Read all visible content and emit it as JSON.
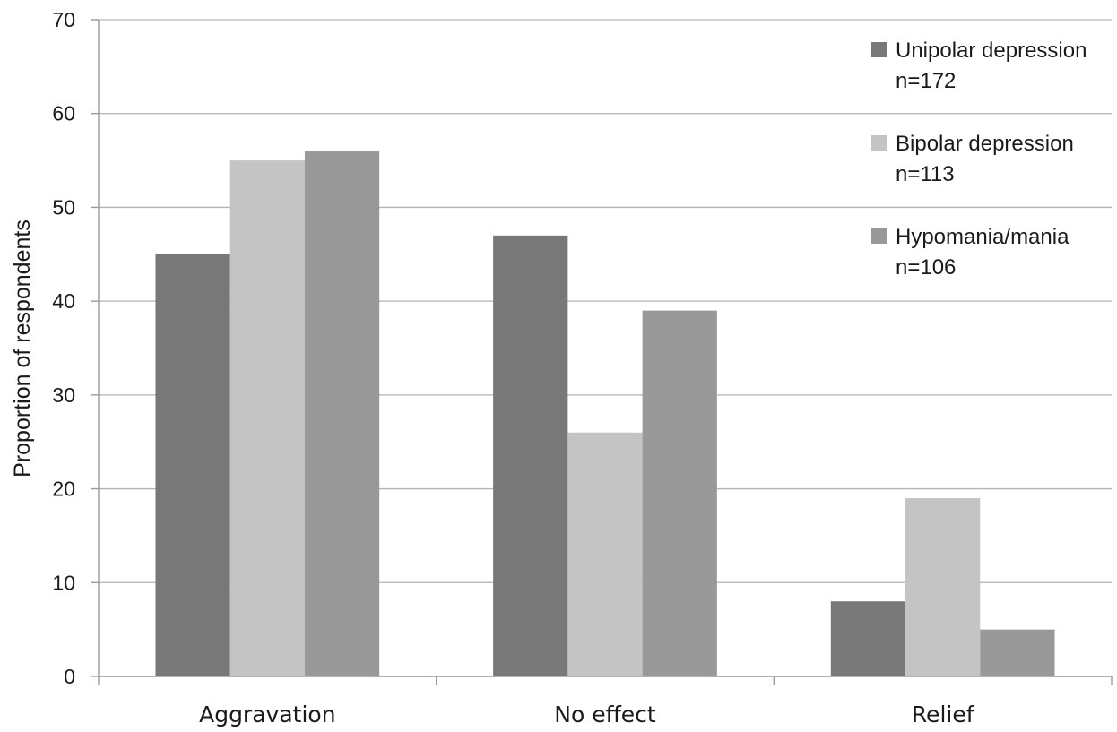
{
  "chart_data": {
    "type": "bar",
    "title": "",
    "xlabel": "",
    "ylabel": "Proportion of respondents",
    "ylim": [
      0,
      70
    ],
    "yticks": [
      0,
      10,
      20,
      30,
      40,
      50,
      60,
      70
    ],
    "grid": true,
    "legend_position": "top-right",
    "categories": [
      "Aggravation",
      "No effect",
      "Relief"
    ],
    "series": [
      {
        "name": "Unipolar depression",
        "sublabel": "n=172",
        "color": "#787878",
        "values": [
          45,
          47,
          8
        ]
      },
      {
        "name": "Bipolar depression",
        "sublabel": "n=113",
        "color": "#c4c4c4",
        "values": [
          55,
          26,
          19
        ]
      },
      {
        "name": "Hypomania/mania",
        "sublabel": "n=106",
        "color": "#999999",
        "values": [
          56,
          39,
          5
        ]
      }
    ]
  }
}
